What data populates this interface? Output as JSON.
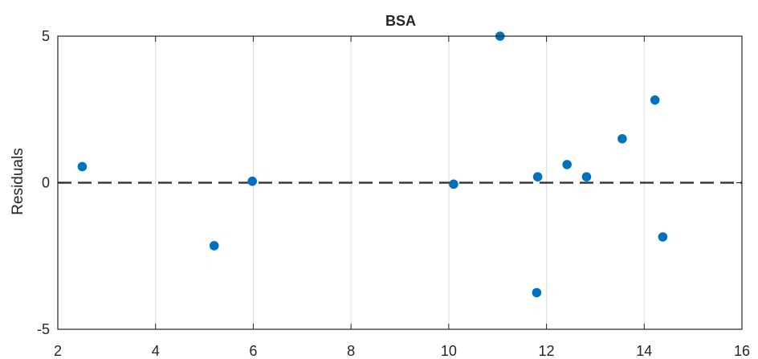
{
  "chart_data": {
    "type": "scatter",
    "title": "BSA",
    "xlabel": "",
    "ylabel": "Residuals",
    "xlim": [
      2,
      16
    ],
    "ylim": [
      -5,
      5
    ],
    "xticks": [
      "2",
      "4",
      "6",
      "8",
      "10",
      "12",
      "14",
      "16"
    ],
    "yticks": [
      "-5",
      "0",
      "5"
    ],
    "grid": "vertical",
    "reference_line": {
      "y": 0,
      "style": "dashed"
    },
    "marker_color": "#0072BD",
    "series": [
      {
        "points": [
          {
            "x": 2.5,
            "y": 0.55
          },
          {
            "x": 5.2,
            "y": -2.15
          },
          {
            "x": 5.98,
            "y": 0.05
          },
          {
            "x": 10.1,
            "y": -0.05
          },
          {
            "x": 11.05,
            "y": 5.0
          },
          {
            "x": 11.8,
            "y": -3.75
          },
          {
            "x": 11.82,
            "y": 0.2
          },
          {
            "x": 12.42,
            "y": 0.62
          },
          {
            "x": 12.82,
            "y": 0.2
          },
          {
            "x": 13.55,
            "y": 1.5
          },
          {
            "x": 14.22,
            "y": 2.82
          },
          {
            "x": 14.38,
            "y": -1.85
          }
        ]
      }
    ]
  }
}
